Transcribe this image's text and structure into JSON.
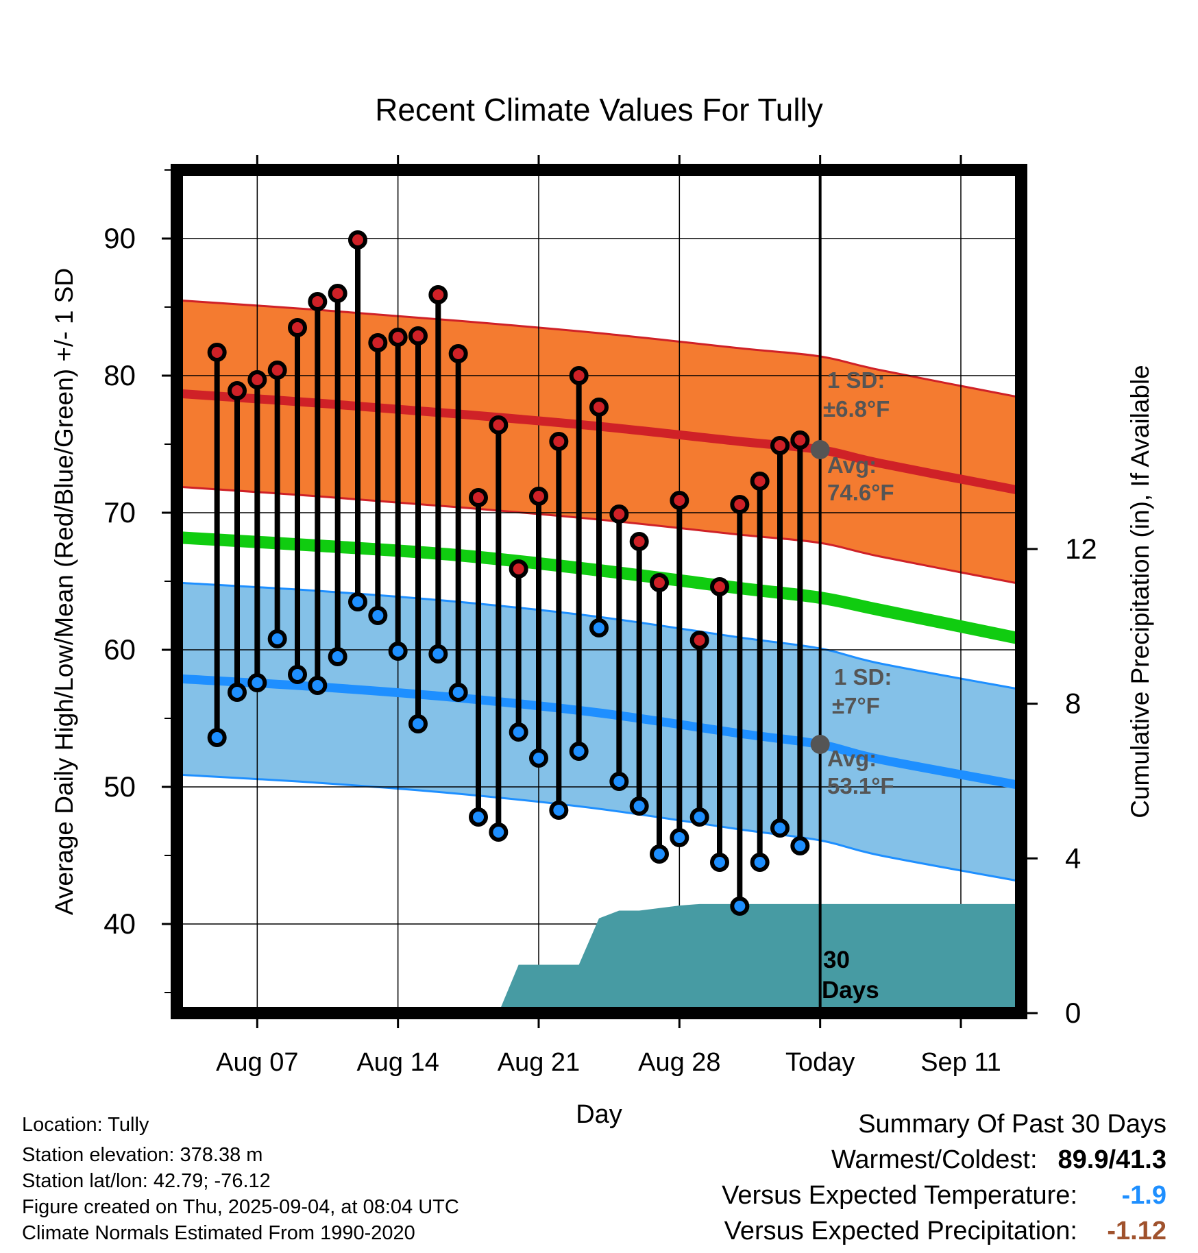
{
  "chart_data": {
    "type": "line",
    "title": "Recent Climate Values For Tully",
    "xlabel": "Day",
    "ylabel": "Average Daily High/Low/Mean (Red/Blue/Green) +/- 1 SD",
    "y2label": "Cumulative Precipitation (in), If Available",
    "x_range": [
      "Aug 03",
      "Sep 14"
    ],
    "ylim": [
      33.5,
      95
    ],
    "y2lim": [
      0,
      21.8
    ],
    "x_ticks": [
      {
        "label": "Aug 07",
        "date": "Aug 07"
      },
      {
        "label": "Aug 14",
        "date": "Aug 14"
      },
      {
        "label": "Aug 21",
        "date": "Aug 21"
      },
      {
        "label": "Aug 28",
        "date": "Aug 28"
      },
      {
        "label": "Today",
        "date": "Sep 04"
      },
      {
        "label": "Sep 11",
        "date": "Sep 11"
      }
    ],
    "y_ticks": [
      40,
      50,
      60,
      70,
      80,
      90
    ],
    "y2_ticks": [
      0,
      4,
      8,
      12
    ],
    "grid": true,
    "today": "Sep 04",
    "normals": {
      "dates": [
        "Aug 03",
        "Aug 10",
        "Aug 17",
        "Aug 24",
        "Aug 31",
        "Sep 04",
        "Sep 07",
        "Sep 14"
      ],
      "high_mean": [
        78.7,
        78.0,
        77.2,
        76.3,
        75.2,
        74.6,
        73.6,
        71.6
      ],
      "high_sd": 6.8,
      "low_mean": [
        57.9,
        57.3,
        56.5,
        55.4,
        53.9,
        53.1,
        52.0,
        50.1
      ],
      "low_sd": 7.0,
      "mean": [
        68.2,
        67.6,
        66.9,
        65.8,
        64.5,
        63.8,
        62.9,
        60.8
      ]
    },
    "daily": [
      {
        "date": "Aug 05",
        "high": 81.7,
        "low": 53.6
      },
      {
        "date": "Aug 06",
        "high": 78.9,
        "low": 56.9
      },
      {
        "date": "Aug 07",
        "high": 79.7,
        "low": 57.6
      },
      {
        "date": "Aug 08",
        "high": 80.4,
        "low": 60.8
      },
      {
        "date": "Aug 09",
        "high": 83.5,
        "low": 58.2
      },
      {
        "date": "Aug 10",
        "high": 85.4,
        "low": 57.4
      },
      {
        "date": "Aug 11",
        "high": 86.0,
        "low": 59.5
      },
      {
        "date": "Aug 12",
        "high": 89.9,
        "low": 63.5
      },
      {
        "date": "Aug 13",
        "high": 82.4,
        "low": 62.5
      },
      {
        "date": "Aug 14",
        "high": 82.8,
        "low": 59.9
      },
      {
        "date": "Aug 15",
        "high": 82.9,
        "low": 54.6
      },
      {
        "date": "Aug 16",
        "high": 85.9,
        "low": 59.7
      },
      {
        "date": "Aug 17",
        "high": 81.6,
        "low": 56.9
      },
      {
        "date": "Aug 18",
        "high": 71.1,
        "low": 47.8
      },
      {
        "date": "Aug 19",
        "high": 76.4,
        "low": 46.7
      },
      {
        "date": "Aug 20",
        "high": 65.9,
        "low": 54.0
      },
      {
        "date": "Aug 21",
        "high": 71.2,
        "low": 52.1
      },
      {
        "date": "Aug 22",
        "high": 75.2,
        "low": 48.3
      },
      {
        "date": "Aug 23",
        "high": 80.0,
        "low": 52.6
      },
      {
        "date": "Aug 24",
        "high": 77.7,
        "low": 61.6
      },
      {
        "date": "Aug 25",
        "high": 69.9,
        "low": 50.4
      },
      {
        "date": "Aug 26",
        "high": 67.9,
        "low": 48.6
      },
      {
        "date": "Aug 27",
        "high": 64.9,
        "low": 45.1
      },
      {
        "date": "Aug 28",
        "high": 70.9,
        "low": 46.3
      },
      {
        "date": "Aug 29",
        "high": 60.7,
        "low": 47.8
      },
      {
        "date": "Aug 30",
        "high": 64.6,
        "low": 44.5
      },
      {
        "date": "Aug 31",
        "high": 70.6,
        "low": 41.3
      },
      {
        "date": "Sep 01",
        "high": 72.3,
        "low": 44.5
      },
      {
        "date": "Sep 02",
        "high": 74.9,
        "low": 47.0
      },
      {
        "date": "Sep 03",
        "high": 75.3,
        "low": 45.7
      }
    ],
    "precip_cumulative": [
      {
        "date": "Aug 17",
        "value": 0
      },
      {
        "date": "Aug 18",
        "value": 0
      },
      {
        "date": "Aug 19",
        "value": 0
      },
      {
        "date": "Aug 20",
        "value": 1.25
      },
      {
        "date": "Aug 22",
        "value": 1.25
      },
      {
        "date": "Aug 23",
        "value": 1.25
      },
      {
        "date": "Aug 24",
        "value": 2.45
      },
      {
        "date": "Aug 25",
        "value": 2.65
      },
      {
        "date": "Aug 26",
        "value": 2.65
      },
      {
        "date": "Aug 28",
        "value": 2.78
      },
      {
        "date": "Aug 29",
        "value": 2.82
      },
      {
        "date": "Sep 04",
        "value": 2.82
      },
      {
        "date": "Sep 14",
        "value": 2.82
      }
    ],
    "annotations": {
      "high_sd": "1 SD:",
      "high_sd_value": "±6.8°F",
      "high_avg": "Avg:",
      "high_avg_value": "74.6°F",
      "low_sd": "1 SD:",
      "low_sd_value": "±7°F",
      "low_avg": "Avg:",
      "low_avg_value": "53.1°F",
      "days_number": "30",
      "days_word": "Days"
    },
    "colors": {
      "high_band": "#f47b30",
      "high_line": "#cf2127",
      "low_band": "#84c1e8",
      "low_line": "#1e8fff",
      "mean_line": "#10cc10",
      "precip": "#479ba3",
      "annotation": "#555555",
      "today_marker": "#555555"
    }
  },
  "info": {
    "location": "Location: Tully",
    "elevation": "Station elevation: 378.38 m",
    "latlon": "Station lat/lon: 42.79; -76.12",
    "created": "Figure created on Thu, 2025-09-04, at 08:04 UTC",
    "normals": "Climate Normals Estimated From 1990-2020"
  },
  "summary": {
    "title": "Summary Of Past 30 Days",
    "warmest_coldest_label": "Warmest/Coldest:",
    "warmest_coldest_value": "89.9/41.3",
    "temp_label": "Versus Expected Temperature:",
    "temp_value": "-1.9",
    "temp_color": "#1e8fff",
    "precip_label": "Versus Expected Precipitation:",
    "precip_value": "-1.12",
    "precip_color": "#a0522d"
  }
}
